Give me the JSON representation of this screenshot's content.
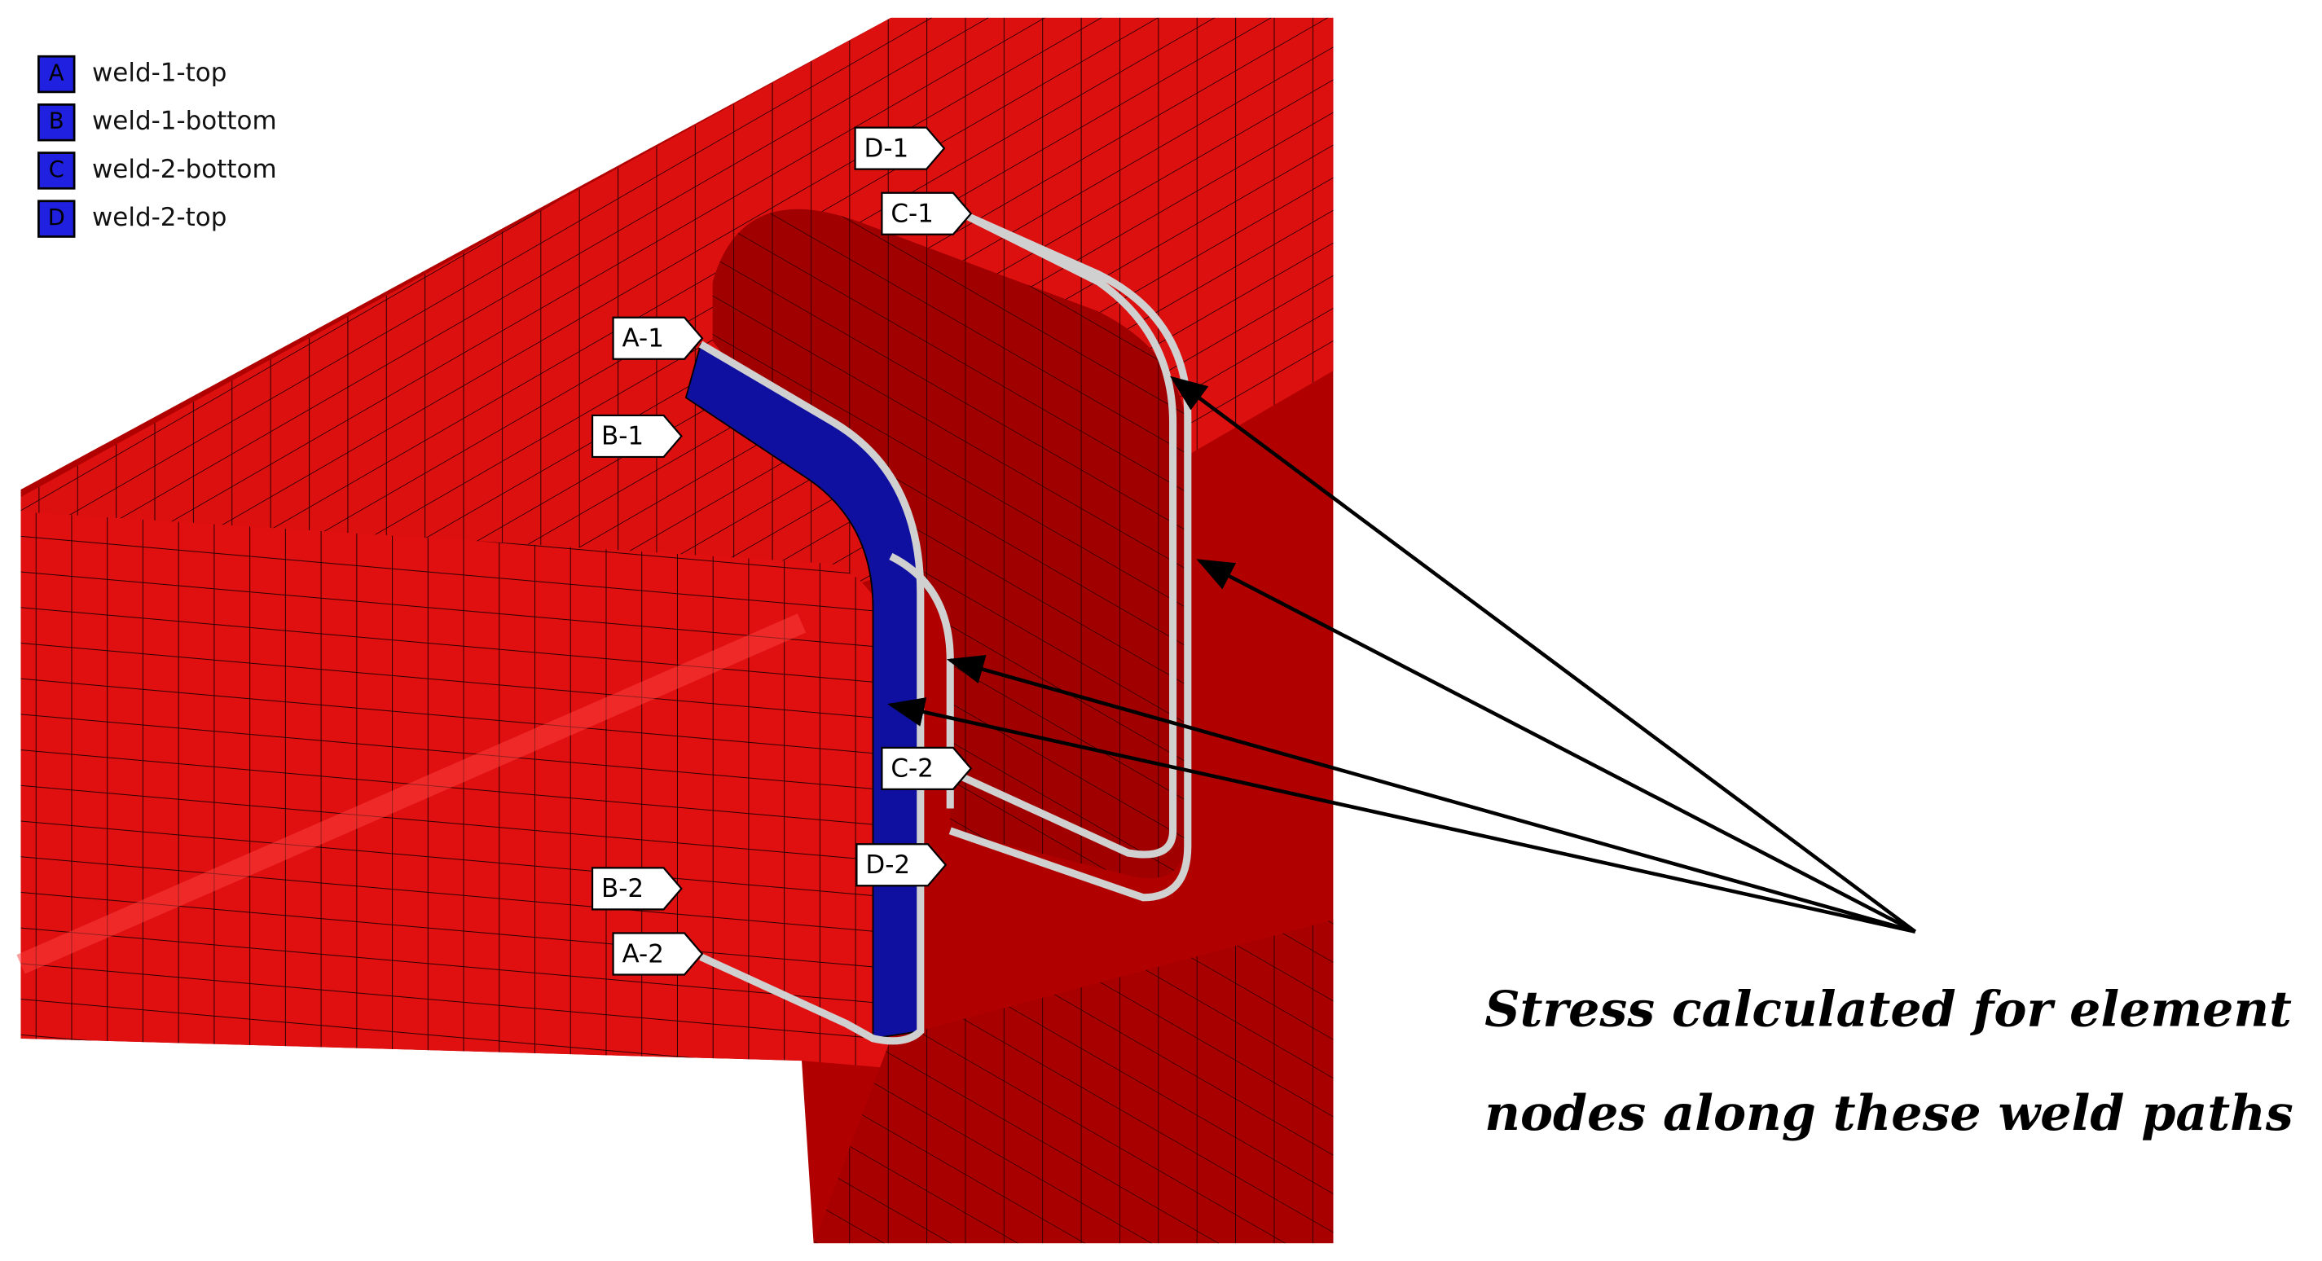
{
  "legend": [
    {
      "key": "A",
      "label": "weld-1-top"
    },
    {
      "key": "B",
      "label": "weld-1-bottom"
    },
    {
      "key": "C",
      "label": "weld-2-bottom"
    },
    {
      "key": "D",
      "label": "weld-2-top"
    }
  ],
  "path_tags": [
    "D-1",
    "C-1",
    "A-1",
    "B-1",
    "C-2",
    "D-2",
    "B-2",
    "A-2"
  ],
  "annotation": [
    "Stress calculated for element",
    "nodes along these weld paths"
  ]
}
